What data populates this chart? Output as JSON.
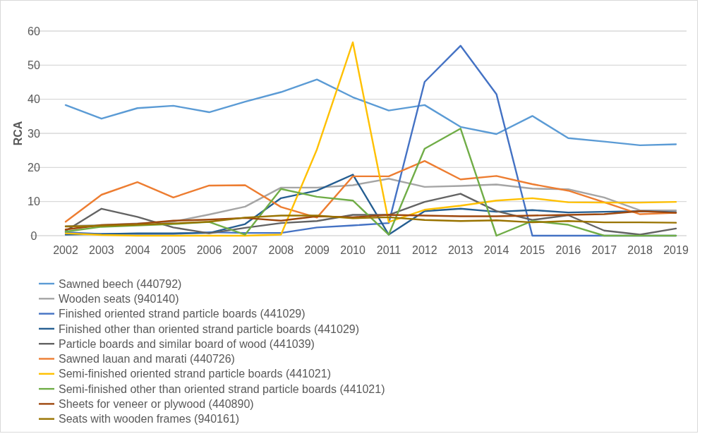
{
  "chart_data": {
    "type": "line",
    "ylabel": "RCA",
    "categories": [
      "2002",
      "2003",
      "2004",
      "2005",
      "2006",
      "2007",
      "2008",
      "2009",
      "2010",
      "2011",
      "2012",
      "2013",
      "2014",
      "2015",
      "2016",
      "2017",
      "2018",
      "2019"
    ],
    "ylim": [
      0,
      60
    ],
    "yticks": [
      0,
      10,
      20,
      30,
      40,
      50,
      60
    ],
    "grid": "y",
    "legend": "bottom",
    "marker": "none",
    "series": [
      {
        "name": "Sawned beech (440792)",
        "color": "#5b9bd5",
        "values": [
          38.3,
          34.3,
          37.4,
          38.1,
          36.2,
          39.3,
          42.1,
          45.8,
          40.6,
          36.7,
          38.3,
          31.9,
          29.8,
          35.1,
          28.6,
          27.6,
          26.5,
          26.8
        ]
      },
      {
        "name": "Wooden seats (940140)",
        "color": "#a5a5a5",
        "values": [
          2.8,
          3.1,
          3.6,
          4.1,
          6.2,
          8.5,
          14.1,
          14.1,
          14.8,
          16.7,
          14.3,
          14.6,
          15,
          13.8,
          13.6,
          11.2,
          7.4,
          7.4
        ]
      },
      {
        "name": "Finished oriented strand particle boards (441029)",
        "color": "#4472c4",
        "values": [
          1,
          0.5,
          0.5,
          0.5,
          1,
          0.8,
          0.8,
          2.4,
          3,
          3.7,
          45.1,
          55.7,
          41.5,
          0,
          0,
          0,
          0,
          0
        ]
      },
      {
        "name": "Finished other than oriented strand particle boards (441029)",
        "color": "#255e91",
        "values": [
          0.3,
          0.5,
          0.7,
          0.7,
          0.8,
          3.4,
          11,
          13.2,
          17.9,
          0.3,
          7.2,
          7.9,
          7,
          7.5,
          6.8,
          7,
          7.2,
          6.9
        ]
      },
      {
        "name": "Particle boards and similar board of wood (441039)",
        "color": "#636363",
        "values": [
          1.4,
          7.9,
          5.5,
          2.4,
          0.7,
          2.3,
          3.7,
          4.3,
          6.1,
          6.1,
          9.9,
          12.3,
          7.2,
          4.6,
          6,
          1.5,
          0.3,
          2.1
        ]
      },
      {
        "name": "Sawned lauan and marati (440726)",
        "color": "#ed7d31",
        "values": [
          4.1,
          12,
          15.7,
          11.2,
          14.7,
          14.8,
          8.4,
          5.3,
          17.4,
          17.4,
          21.9,
          16.5,
          17.5,
          15.1,
          13.2,
          9.8,
          6.3,
          6.7
        ]
      },
      {
        "name": "Semi-finished oriented strand particle boards (441021)",
        "color": "#ffc000",
        "values": [
          0.7,
          0.2,
          0,
          0,
          0,
          0,
          0.3,
          25.3,
          56.7,
          4,
          7.6,
          8.8,
          10.3,
          11,
          9.8,
          9.7,
          9.7,
          9.9
        ]
      },
      {
        "name": "Semi-finished other than oriented strand particle boards (441021)",
        "color": "#70ad47",
        "values": [
          1.2,
          2.6,
          3,
          3.4,
          4,
          0.3,
          13.7,
          11.4,
          10.3,
          0.3,
          25.5,
          31.4,
          0,
          4.3,
          3.2,
          0,
          0,
          0
        ]
      },
      {
        "name": "Sheets for veneer or plywood (440890)",
        "color": "#9e480e",
        "values": [
          1.8,
          3.1,
          3.5,
          4.4,
          4.7,
          5.2,
          4.4,
          5.7,
          5.4,
          6.1,
          5.9,
          5.7,
          5.7,
          5.9,
          6.1,
          6.3,
          7.2,
          6.7
        ]
      },
      {
        "name": "Seats with wooden frames (940161)",
        "color": "#997300",
        "values": [
          2.7,
          2.9,
          3.2,
          3.6,
          4.1,
          5.3,
          5.9,
          5.9,
          5.1,
          5.4,
          4.6,
          4.3,
          4.5,
          3.9,
          4.3,
          3.9,
          3.9,
          3.8
        ]
      }
    ]
  }
}
